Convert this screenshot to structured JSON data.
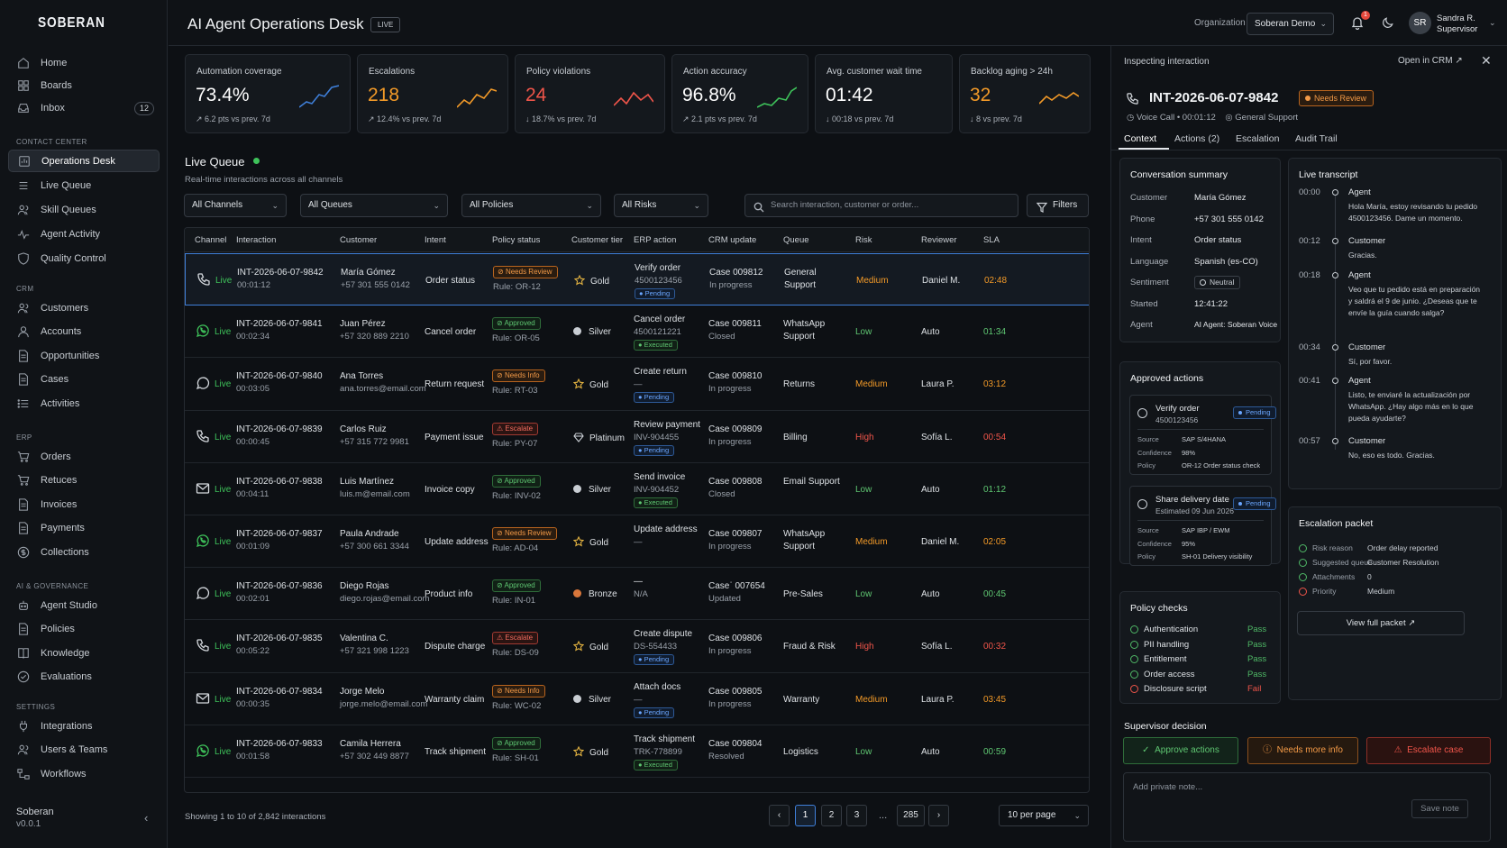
{
  "app": {
    "logo": "SOBERAN",
    "footer_name": "Soberan",
    "footer_version": "v0.0.1"
  },
  "sidebar": {
    "top": [
      {
        "label": "Home",
        "icon": "home-icon"
      },
      {
        "label": "Boards",
        "icon": "grid-icon"
      },
      {
        "label": "Inbox",
        "icon": "inbox-icon",
        "badge": "12"
      }
    ],
    "sections": [
      {
        "title": "CONTACT CENTER",
        "items": [
          "Operations Desk",
          "Live Queue",
          "Skill Queues",
          "Agent Activity",
          "Quality Control"
        ]
      },
      {
        "title": "CRM",
        "items": [
          "Customers",
          "Accounts",
          "Opportunities",
          "Cases",
          "Activities"
        ]
      },
      {
        "title": "ERP",
        "items": [
          "Orders",
          "Retuces",
          "Invoices",
          "Payments",
          "Collections"
        ]
      },
      {
        "title": "AI & GOVERNANCE",
        "items": [
          "Agent Studio",
          "Policies",
          "Knowledge",
          "Evaluations"
        ]
      },
      {
        "title": "SETTINGS",
        "items": [
          "Integrations",
          "Users & Teams",
          "Workflows"
        ]
      }
    ]
  },
  "header": {
    "title": "AI Agent Operations Desk",
    "live": "LIVE",
    "org_label": "Organization",
    "org_value": "Soberan Demo",
    "notif_count": "1",
    "avatar": "SR",
    "user_name": "Sandra R.",
    "user_role": "Supervisor"
  },
  "kpis": [
    {
      "label": "Automation coverage",
      "value": "73.4%",
      "delta": "↗ 6.2 pts vs prev. 7d",
      "color": "#ffffff",
      "spark": "#3f7fd9"
    },
    {
      "label": "Escalations",
      "value": "218",
      "delta": "↗ 12.4% vs prev. 7d",
      "color": "#f39a28",
      "spark": "#f39a28"
    },
    {
      "label": "Policy violations",
      "value": "24",
      "delta": "↓ 18.7% vs prev. 7d",
      "color": "#f0554a",
      "spark": "#f0554a"
    },
    {
      "label": "Action accuracy",
      "value": "96.8%",
      "delta": "↗ 2.1 pts vs prev. 7d",
      "color": "#ffffff",
      "spark": "#3ec25a"
    },
    {
      "label": "Avg. customer wait time",
      "value": "01:42",
      "delta": "↓ 00:18 vs prev. 7d",
      "color": "#ffffff",
      "spark": ""
    },
    {
      "label": "Backlog aging > 24h",
      "value": "32",
      "delta": "↓ 8 vs prev. 7d",
      "color": "#f39a28",
      "spark": "#f39a28"
    }
  ],
  "queue": {
    "title": "Live Queue",
    "subtitle": "Real-time interactions across all channels",
    "filters": [
      "All Channels",
      "All Queues",
      "All Policies",
      "All Risks"
    ],
    "search_placeholder": "Search interaction, customer or order...",
    "filters_btn": "Filters",
    "columns": [
      "Channel",
      "Interaction",
      "Customer",
      "Intent",
      "Policy status",
      "Customer tier",
      "ERP action",
      "CRM update",
      "Queue",
      "Risk",
      "Reviewer",
      "SLA"
    ],
    "rows": [
      {
        "channel": "phone",
        "live": "Live",
        "id": "INT-2026-06-07-9842",
        "dur": "00:01:12",
        "customer": "María Gómez",
        "contact": "+57 301 555 0142",
        "intent": "Order status",
        "policy": "Needs Review",
        "policy_type": "review",
        "rule": "Rule: OR-12",
        "tier": "Gold",
        "tier_type": "star",
        "erp": "Verify order",
        "erp_sub": "4500123456",
        "erp_status": "Pending",
        "crm": "Case 009812",
        "crm_sub": "In progress",
        "queue": "General Support",
        "risk": "Medium",
        "reviewer": "Daniel M.",
        "sla": "02:48"
      },
      {
        "channel": "whatsapp",
        "live": "Live",
        "id": "INT-2026-06-07-9841",
        "dur": "00:02:34",
        "customer": "Juan Pérez",
        "contact": "+57 320 889 2210",
        "intent": "Cancel order",
        "policy": "Approved",
        "policy_type": "approved",
        "rule": "Rule: OR-05",
        "tier": "Silver",
        "tier_type": "silver",
        "erp": "Cancel order",
        "erp_sub": "4500121221",
        "erp_status": "Executed",
        "crm": "Case 009811",
        "crm_sub": "Closed",
        "queue": "WhatsApp Support",
        "risk": "Low",
        "reviewer": "Auto",
        "sla": "01:34"
      },
      {
        "channel": "chat",
        "live": "Live",
        "id": "INT-2026-06-07-9840",
        "dur": "00:03:05",
        "customer": "Ana Torres",
        "contact": "ana.torres@email.com",
        "intent": "Return request",
        "policy": "Needs Info",
        "policy_type": "info",
        "rule": "Rule: RT-03",
        "tier": "Gold",
        "tier_type": "star",
        "erp": "Create return",
        "erp_sub": "—",
        "erp_status": "Pending",
        "crm": "Case 009810",
        "crm_sub": "In progress",
        "queue": "Returns",
        "risk": "Medium",
        "reviewer": "Laura P.",
        "sla": "03:12"
      },
      {
        "channel": "phone",
        "live": "Live",
        "id": "INT-2026-06-07-9839",
        "dur": "00:00:45",
        "customer": "Carlos Ruiz",
        "contact": "+57 315 772 9981",
        "intent": "Payment issue",
        "policy": "Escalate",
        "policy_type": "esc",
        "rule": "Rule: PY-07",
        "tier": "Platinum",
        "tier_type": "diamond",
        "erp": "Review payment",
        "erp_sub": "INV-904455",
        "erp_status": "Pending",
        "crm": "Case 009809",
        "crm_sub": "In progress",
        "queue": "Billing",
        "risk": "High",
        "reviewer": "Sofía L.",
        "sla": "00:54"
      },
      {
        "channel": "email",
        "live": "Live",
        "id": "INT-2026-06-07-9838",
        "dur": "00:04:11",
        "customer": "Luis Martínez",
        "contact": "luis.m@email.com",
        "intent": "Invoice copy",
        "policy": "Approved",
        "policy_type": "approved",
        "rule": "Rule: INV-02",
        "tier": "Silver",
        "tier_type": "silver",
        "erp": "Send invoice",
        "erp_sub": "INV-904452",
        "erp_status": "Executed",
        "crm": "Case 009808",
        "crm_sub": "Closed",
        "queue": "Email Support",
        "risk": "Low",
        "reviewer": "Auto",
        "sla": "01:12"
      },
      {
        "channel": "whatsapp",
        "live": "Live",
        "id": "INT-2026-06-07-9837",
        "dur": "00:01:09",
        "customer": "Paula Andrade",
        "contact": "+57 300 661 3344",
        "intent": "Update address",
        "policy": "Needs Review",
        "policy_type": "review",
        "rule": "Rule: AD-04",
        "tier": "Gold",
        "tier_type": "star",
        "erp": "Update address",
        "erp_sub": "—",
        "erp_status": "",
        "crm": "Case 009807",
        "crm_sub": "In progress",
        "queue": "WhatsApp Support",
        "risk": "Medium",
        "reviewer": "Daniel M.",
        "sla": "02:05"
      },
      {
        "channel": "chat",
        "live": "Live",
        "id": "INT-2026-06-07-9836",
        "dur": "00:02:01",
        "customer": "Diego Rojas",
        "contact": "diego.rojas@email.com",
        "intent": "Product info",
        "policy": "Approved",
        "policy_type": "approved",
        "rule": "Rule: IN-01",
        "tier": "Bronze",
        "tier_type": "bronze",
        "erp": "—",
        "erp_sub": "N/A",
        "erp_status": "",
        "crm": "Caseˈ 007654",
        "crm_sub": "Updated",
        "queue": "Pre-Sales",
        "risk": "Low",
        "reviewer": "Auto",
        "sla": "00:45"
      },
      {
        "channel": "phone",
        "live": "Live",
        "id": "INT-2026-06-07-9835",
        "dur": "00:05:22",
        "customer": "Valentina C.",
        "contact": "+57 321 998 1223",
        "intent": "Dispute charge",
        "policy": "Escalate",
        "policy_type": "esc",
        "rule": "Rule: DS-09",
        "tier": "Gold",
        "tier_type": "star",
        "erp": "Create dispute",
        "erp_sub": "DS-554433",
        "erp_status": "Pending",
        "crm": "Case 009806",
        "crm_sub": "In progress",
        "queue": "Fraud & Risk",
        "risk": "High",
        "reviewer": "Sofía L.",
        "sla": "00:32"
      },
      {
        "channel": "email",
        "live": "Live",
        "id": "INT-2026-06-07-9834",
        "dur": "00:00:35",
        "customer": "Jorge Melo",
        "contact": "jorge.melo@email.com",
        "intent": "Warranty claim",
        "policy": "Needs Info",
        "policy_type": "info",
        "rule": "Rule: WC-02",
        "tier": "Silver",
        "tier_type": "silver",
        "erp": "Attach docs",
        "erp_sub": "—",
        "erp_status": "Pending",
        "crm": "Case 009805",
        "crm_sub": "In progress",
        "queue": "Warranty",
        "risk": "Medium",
        "reviewer": "Laura P.",
        "sla": "03:45"
      },
      {
        "channel": "whatsapp",
        "live": "Live",
        "id": "INT-2026-06-07-9833",
        "dur": "00:01:58",
        "customer": "Camila Herrera",
        "contact": "+57 302 449 8877",
        "intent": "Track shipment",
        "policy": "Approved",
        "policy_type": "approved",
        "rule": "Rule: SH-01",
        "tier": "Gold",
        "tier_type": "star",
        "erp": "Track shipment",
        "erp_sub": "TRK-778899",
        "erp_status": "Executed",
        "crm": "Case 009804",
        "crm_sub": "Resolved",
        "queue": "Logistics",
        "risk": "Low",
        "reviewer": "Auto",
        "sla": "00:59"
      }
    ],
    "showing": "Showing 1 to 10 of 2,842 interactions",
    "pages": [
      "1",
      "2",
      "3",
      "285"
    ],
    "page_dots": "...",
    "per_page": "10 per page"
  },
  "panel": {
    "header": "Inspecting interaction",
    "open_crm": "Open in CRM",
    "id": "INT-2026-06-07-9842",
    "status": "Needs Review",
    "meta_call": "Voice Call • 00:01:12",
    "meta_queue": "General Support",
    "tabs": [
      "Context",
      "Actions (2)",
      "Escalation",
      "Audit Trail"
    ],
    "summary_title": "Conversation summary",
    "summary": [
      {
        "k": "Customer",
        "v": "María Gómez"
      },
      {
        "k": "Phone",
        "v": "+57 301 555 0142"
      },
      {
        "k": "Intent",
        "v": "Order status"
      },
      {
        "k": "Language",
        "v": "Spanish (es-CO)"
      },
      {
        "k": "Sentiment",
        "v": "Neutral"
      },
      {
        "k": "Started",
        "v": "12:41:22"
      },
      {
        "k": "Agent",
        "v": "AI Agent: Soberan Voice"
      }
    ],
    "transcript_title": "Live transcript",
    "transcript": [
      {
        "t": "00:00",
        "who": "Agent",
        "text": "Hola María, estoy revisando tu pedido 4500123456. Dame un momento."
      },
      {
        "t": "00:12",
        "who": "Customer",
        "text": "Gracias."
      },
      {
        "t": "00:18",
        "who": "Agent",
        "text": "Veo que tu pedido está en preparación y saldrá el 9 de junio. ¿Deseas que te envíe la guía cuando salga?"
      },
      {
        "t": "00:34",
        "who": "Customer",
        "text": "Sí, por favor."
      },
      {
        "t": "00:41",
        "who": "Agent",
        "text": "Listo, te enviaré la actualización por WhatsApp. ¿Hay algo más en lo que pueda ayudarte?"
      },
      {
        "t": "00:57",
        "who": "Customer",
        "text": "No, eso es todo. Gracias."
      }
    ],
    "actions_title": "Approved actions",
    "actions": [
      {
        "title": "Verify order",
        "sub": "4500123456",
        "status": "Pending",
        "source_k": "Source",
        "source": "SAP S/4HANA",
        "conf_k": "Confidence",
        "conf": "98%",
        "policy_k": "Policy",
        "policy": "OR-12 Order status check"
      },
      {
        "title": "Share delivery date",
        "sub": "Estimated 09 Jun 2026",
        "status": "Pending",
        "source_k": "Source",
        "source": "SAP IBP / EWM",
        "conf_k": "Confidence",
        "conf": "95%",
        "policy_k": "Policy",
        "policy": "SH-01 Delivery visibility"
      }
    ],
    "policy_title": "Policy checks",
    "policy_checks": [
      {
        "k": "Authentication",
        "v": "Pass"
      },
      {
        "k": "PII handling",
        "v": "Pass"
      },
      {
        "k": "Entitlement",
        "v": "Pass"
      },
      {
        "k": "Order access",
        "v": "Pass"
      },
      {
        "k": "Disclosure script",
        "v": "Fail"
      }
    ],
    "escalation_title": "Escalation packet",
    "escalation": [
      {
        "k": "Risk reason",
        "v": "Order delay reported"
      },
      {
        "k": "Suggested queue",
        "v": "Customer Resolution"
      },
      {
        "k": "Attachments",
        "v": "0"
      },
      {
        "k": "Priority",
        "v": "Medium"
      }
    ],
    "view_packet": "View full packet",
    "decision_title": "Supervisor decision",
    "approve": "Approve actions",
    "more_info": "Needs more info",
    "escalate": "Escalate case",
    "note_placeholder": "Add private note...",
    "save_note": "Save note"
  }
}
